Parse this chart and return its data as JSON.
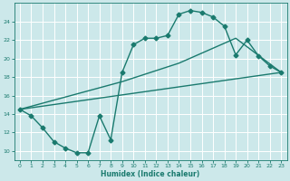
{
  "xlabel": "Humidex (Indice chaleur)",
  "ylabel": "",
  "bg_color": "#cce8ea",
  "line_color": "#1a7a6e",
  "grid_color": "#ffffff",
  "xlim": [
    -0.5,
    23.5
  ],
  "ylim": [
    9.0,
    26.0
  ],
  "yticks": [
    10,
    12,
    14,
    16,
    18,
    20,
    22,
    24
  ],
  "xticks": [
    0,
    1,
    2,
    3,
    4,
    5,
    6,
    7,
    8,
    9,
    10,
    11,
    12,
    13,
    14,
    15,
    16,
    17,
    18,
    19,
    20,
    21,
    22,
    23
  ],
  "curve1_x": [
    0,
    1,
    2,
    3,
    4,
    5,
    6,
    7,
    8,
    9,
    10,
    11,
    12,
    13,
    14,
    15,
    16,
    17,
    18,
    19,
    20,
    21,
    22,
    23
  ],
  "curve1_y": [
    14.5,
    13.8,
    12.5,
    11.0,
    10.3,
    9.8,
    9.8,
    13.8,
    11.2,
    18.5,
    21.5,
    22.2,
    22.2,
    22.5,
    24.8,
    25.2,
    25.0,
    24.5,
    23.5,
    20.4,
    22.0,
    20.3,
    19.2,
    18.5
  ],
  "curve2_x": [
    0,
    23
  ],
  "curve2_y": [
    14.5,
    18.5
  ],
  "curve3_x": [
    0,
    9,
    14,
    19,
    23
  ],
  "curve3_y": [
    14.5,
    17.5,
    19.5,
    22.2,
    18.5
  ],
  "marker": "D",
  "markersize": 2.5,
  "linewidth": 1.0
}
